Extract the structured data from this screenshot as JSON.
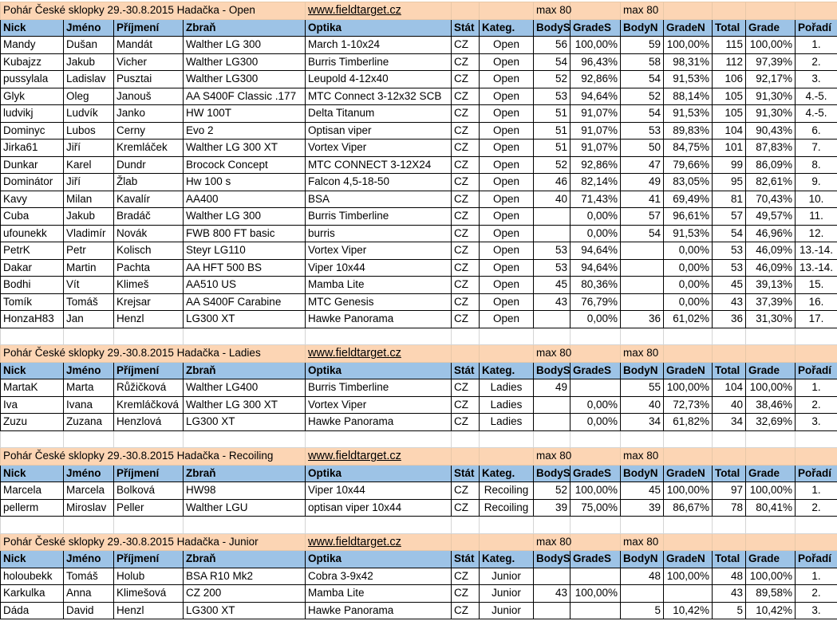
{
  "sections": [
    {
      "title": "Pohár České sklopky 29.-30.8.2015 Hadačka - Open",
      "url": "www.fieldtarget.cz",
      "max_s": "max 80",
      "max_n": "max 80",
      "headers": [
        "Nick",
        "Jméno",
        "Příjmení",
        "Zbraň",
        "Optika",
        "Stát",
        "Kateg.",
        "BodyS",
        "GradeS",
        "BodyN",
        "GradeN",
        "Total",
        "Grade",
        "Pořadí"
      ],
      "rows": [
        [
          "Mandy",
          "Dušan",
          "Mandát",
          "Walther LG 300",
          "March 1-10x24",
          "CZ",
          "Open",
          "56",
          "100,00%",
          "59",
          "100,00%",
          "115",
          "100,00%",
          "1."
        ],
        [
          "Kubajzz",
          "Jakub",
          "Vicher",
          "Walther LG300",
          "Burris Timberline",
          "CZ",
          "Open",
          "54",
          "96,43%",
          "58",
          "98,31%",
          "112",
          "97,39%",
          "2."
        ],
        [
          "pussylala",
          "Ladislav",
          "Pusztai",
          "Walther LG300",
          "Leupold 4-12x40",
          "CZ",
          "Open",
          "52",
          "92,86%",
          "54",
          "91,53%",
          "106",
          "92,17%",
          "3."
        ],
        [
          "Glyk",
          "Oleg",
          "Janouš",
          "AA S400F Classic .177",
          "MTC Connect 3-12x32 SCB",
          "CZ",
          "Open",
          "53",
          "94,64%",
          "52",
          "88,14%",
          "105",
          "91,30%",
          "4.-5."
        ],
        [
          "ludvikj",
          "Ludvík",
          "Janko",
          "HW 100T",
          "Delta Titanum",
          "CZ",
          "Open",
          "51",
          "91,07%",
          "54",
          "91,53%",
          "105",
          "91,30%",
          "4.-5."
        ],
        [
          "Dominyc",
          "Lubos",
          "Cerny",
          "Evo 2",
          "Optisan viper",
          "CZ",
          "Open",
          "51",
          "91,07%",
          "53",
          "89,83%",
          "104",
          "90,43%",
          "6."
        ],
        [
          "Jirka61",
          "Jiří",
          "Kremláček",
          "Walther LG 300 XT",
          "Vortex Viper",
          "CZ",
          "Open",
          "51",
          "91,07%",
          "50",
          "84,75%",
          "101",
          "87,83%",
          "7."
        ],
        [
          "Dunkar",
          "Karel",
          "Dundr",
          "Brocock Concept",
          "MTC CONNECT 3-12X24",
          "CZ",
          "Open",
          "52",
          "92,86%",
          "47",
          "79,66%",
          "99",
          "86,09%",
          "8."
        ],
        [
          "Dominátor",
          "Jiří",
          "Žlab",
          "Hw 100 s",
          "Falcon 4,5-18-50",
          "CZ",
          "Open",
          "46",
          "82,14%",
          "49",
          "83,05%",
          "95",
          "82,61%",
          "9."
        ],
        [
          "Kavy",
          "Milan",
          "Kavalír",
          "AA400",
          "BSA",
          "CZ",
          "Open",
          "40",
          "71,43%",
          "41",
          "69,49%",
          "81",
          "70,43%",
          "10."
        ],
        [
          "Cuba",
          "Jakub",
          "Bradáč",
          "Walther LG 300",
          "Burris Timberline",
          "CZ",
          "Open",
          null,
          "0,00%",
          "57",
          "96,61%",
          "57",
          "49,57%",
          "11."
        ],
        [
          "ufounekk",
          "Vladimír",
          "Novák",
          "FWB 800 FT basic",
          "burris",
          "CZ",
          "Open",
          null,
          "0,00%",
          "54",
          "91,53%",
          "54",
          "46,96%",
          "12."
        ],
        [
          "PetrK",
          "Petr",
          "Kolisch",
          "Steyr LG110",
          "Vortex Viper",
          "CZ",
          "Open",
          "53",
          "94,64%",
          null,
          "0,00%",
          "53",
          "46,09%",
          "13.-14."
        ],
        [
          "Dakar",
          "Martin",
          "Pachta",
          "AA HFT 500 BS",
          "Viper 10x44",
          "CZ",
          "Open",
          "53",
          "94,64%",
          null,
          "0,00%",
          "53",
          "46,09%",
          "13.-14."
        ],
        [
          "Bodhi",
          "Vít",
          "Klimeš",
          "AA510 US",
          "Mamba Lite",
          "CZ",
          "Open",
          "45",
          "80,36%",
          null,
          "0,00%",
          "45",
          "39,13%",
          "15."
        ],
        [
          "Tomík",
          "Tomáš",
          "Krejsar",
          "AA S400F Carabine",
          "MTC Genesis",
          "CZ",
          "Open",
          "43",
          "76,79%",
          null,
          "0,00%",
          "43",
          "37,39%",
          "16."
        ],
        [
          "HonzaH83",
          "Jan",
          "Henzl",
          "LG300 XT",
          "Hawke Panorama",
          "CZ",
          "Open",
          null,
          "0,00%",
          "36",
          "61,02%",
          "36",
          "31,30%",
          "17."
        ]
      ]
    },
    {
      "title": "Pohár České sklopky 29.-30.8.2015 Hadačka - Ladies",
      "url": "www.fieldtarget.cz",
      "max_s": "max 80",
      "max_n": "max 80",
      "headers": [
        "Nick",
        "Jméno",
        "Příjmení",
        "Zbraň",
        "Optika",
        "Stát",
        "Kateg.",
        "BodyS",
        "GradeS",
        "BodyN",
        "GradeN",
        "Total",
        "Grade",
        "Pořadí"
      ],
      "rows": [
        [
          "MartaK",
          "Marta",
          "Růžičková",
          "Walther LG400",
          "Burris Timberline",
          "CZ",
          "Ladies",
          "49",
          null,
          "55",
          "100,00%",
          "104",
          "100,00%",
          "1."
        ],
        [
          "Iva",
          "Ivana",
          "Kremláčková",
          "Walther LG 300 XT",
          "Vortex Viper",
          "CZ",
          "Ladies",
          null,
          "0,00%",
          "40",
          "72,73%",
          "40",
          "38,46%",
          "2."
        ],
        [
          "Zuzu",
          "Zuzana",
          "Henzlová",
          "LG300 XT",
          "Hawke Panorama",
          "CZ",
          "Ladies",
          null,
          "0,00%",
          "34",
          "61,82%",
          "34",
          "32,69%",
          "3."
        ]
      ]
    },
    {
      "title": "Pohár České sklopky 29.-30.8.2015 Hadačka - Recoiling",
      "url": "www.fieldtarget.cz",
      "max_s": "max 80",
      "max_n": "max 80",
      "headers": [
        "Nick",
        "Jméno",
        "Příjmení",
        "Zbraň",
        "Optika",
        "Stát",
        "Kateg.",
        "BodyS",
        "GradeS",
        "BodyN",
        "GradeN",
        "Total",
        "Grade",
        "Pořadí"
      ],
      "rows": [
        [
          "Marcela",
          "Marcela",
          "Bolková",
          "HW98",
          "Viper 10x44",
          "CZ",
          "Recoiling",
          "52",
          "100,00%",
          "45",
          "100,00%",
          "97",
          "100,00%",
          "1."
        ],
        [
          "pellerm",
          "Miroslav",
          "Peller",
          "Walther LGU",
          "optisan viper 10x44",
          "CZ",
          "Recoiling",
          "39",
          "75,00%",
          "39",
          "86,67%",
          "78",
          "80,41%",
          "2."
        ]
      ]
    },
    {
      "title": "Pohár České sklopky 29.-30.8.2015 Hadačka - Junior",
      "url": "www.fieldtarget.cz",
      "max_s": "max 80",
      "max_n": "max 80",
      "headers": [
        "Nick",
        "Jméno",
        "Příjmení",
        "Zbraň",
        "Optika",
        "Stát",
        "Kateg.",
        "BodyS",
        "GradeS",
        "BodyN",
        "GradeN",
        "Total",
        "Grade",
        "Pořadí"
      ],
      "rows": [
        [
          "holoubekk",
          "Tomáš",
          "Holub",
          "BSA R10 Mk2",
          "Cobra 3-9x42",
          "CZ",
          "Junior",
          null,
          null,
          "48",
          "100,00%",
          "48",
          "100,00%",
          "1."
        ],
        [
          "Karkulka",
          "Anna",
          "Klimešová",
          "CZ 200",
          "Mamba Lite",
          "CZ",
          "Junior",
          "43",
          "100,00%",
          null,
          null,
          "43",
          "89,58%",
          "2."
        ],
        [
          "Dáda",
          "David",
          "Henzl",
          "LG300 XT",
          "Hawke Panorama",
          "CZ",
          "Junior",
          null,
          null,
          "5",
          "10,42%",
          "5",
          "10,42%",
          "3."
        ]
      ]
    }
  ]
}
